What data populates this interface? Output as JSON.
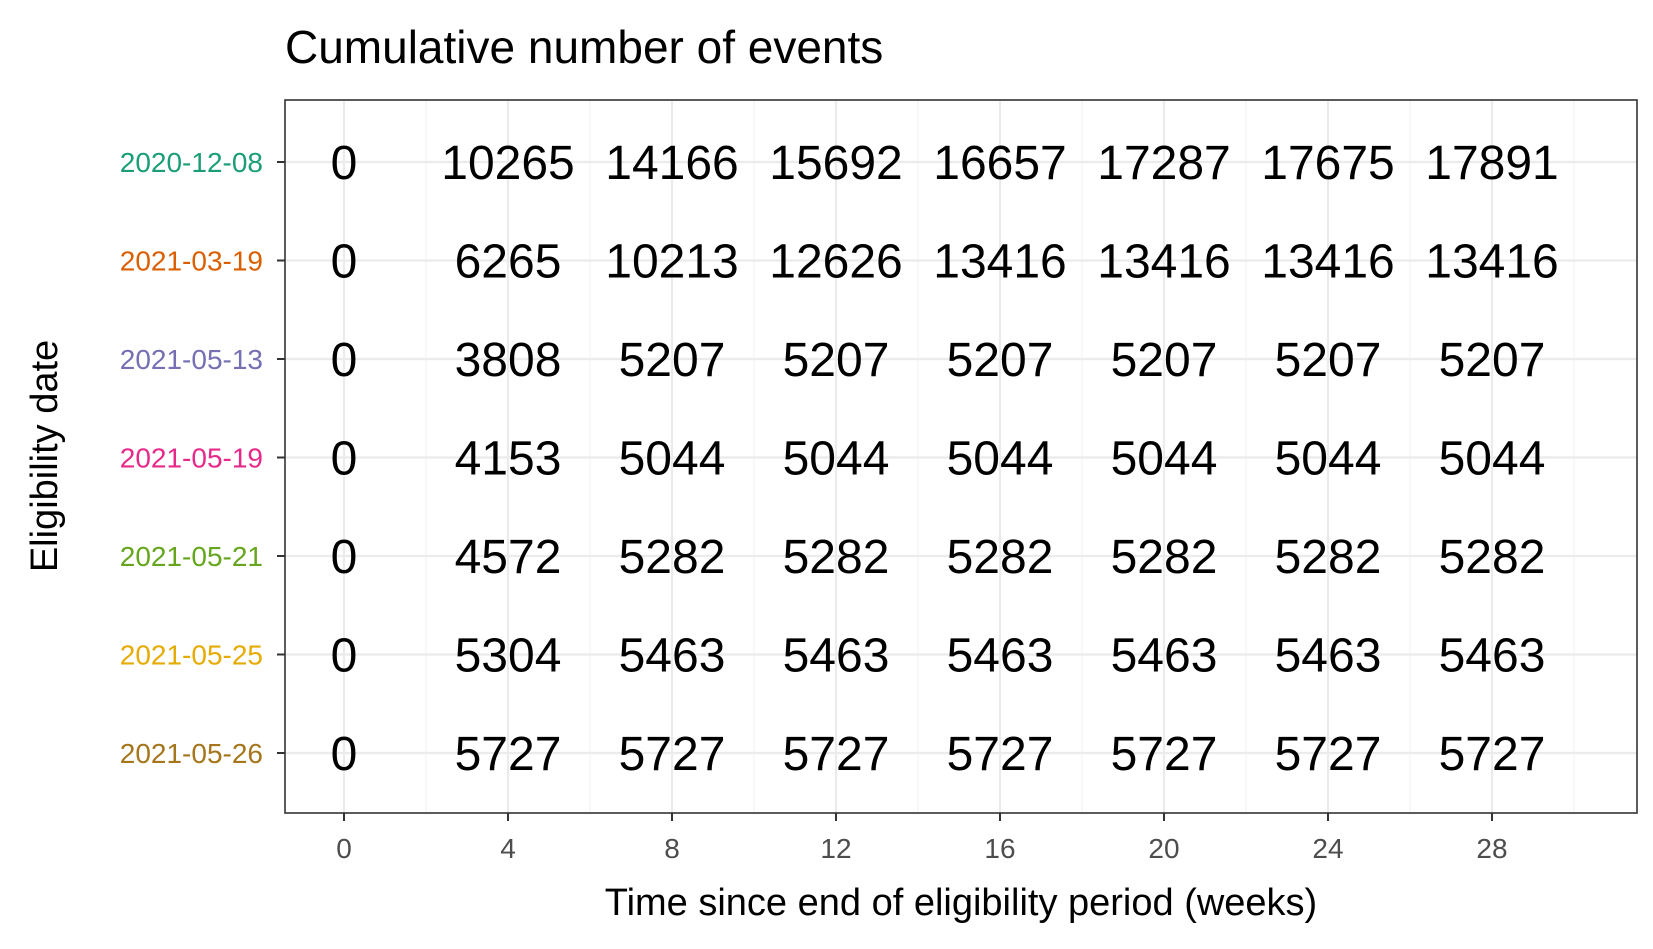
{
  "chart_data": {
    "type": "table",
    "title": "Cumulative number of events",
    "xlabel": "Time since end of eligibility period (weeks)",
    "ylabel": "Eligibility date",
    "x": [
      0,
      4,
      8,
      12,
      16,
      20,
      24,
      28
    ],
    "xlim": [
      0,
      31.2
    ],
    "xticks": [
      "0",
      "4",
      "8",
      "12",
      "16",
      "20",
      "24",
      "28"
    ],
    "grid": true,
    "legend": "none",
    "series": [
      {
        "name": "2020-12-08",
        "color": "#1b9e77",
        "values": [
          0,
          10265,
          14166,
          15692,
          16657,
          17287,
          17675,
          17891
        ]
      },
      {
        "name": "2021-03-19",
        "color": "#d95f02",
        "values": [
          0,
          6265,
          10213,
          12626,
          13416,
          13416,
          13416,
          13416
        ]
      },
      {
        "name": "2021-05-13",
        "color": "#7570b3",
        "values": [
          0,
          3808,
          5207,
          5207,
          5207,
          5207,
          5207,
          5207
        ]
      },
      {
        "name": "2021-05-19",
        "color": "#e7298a",
        "values": [
          0,
          4153,
          5044,
          5044,
          5044,
          5044,
          5044,
          5044
        ]
      },
      {
        "name": "2021-05-21",
        "color": "#66a61e",
        "values": [
          0,
          4572,
          5282,
          5282,
          5282,
          5282,
          5282,
          5282
        ]
      },
      {
        "name": "2021-05-25",
        "color": "#e6ab02",
        "values": [
          0,
          5304,
          5463,
          5463,
          5463,
          5463,
          5463,
          5463
        ]
      },
      {
        "name": "2021-05-26",
        "color": "#a6761d",
        "values": [
          0,
          5727,
          5727,
          5727,
          5727,
          5727,
          5727,
          5727
        ]
      }
    ]
  }
}
